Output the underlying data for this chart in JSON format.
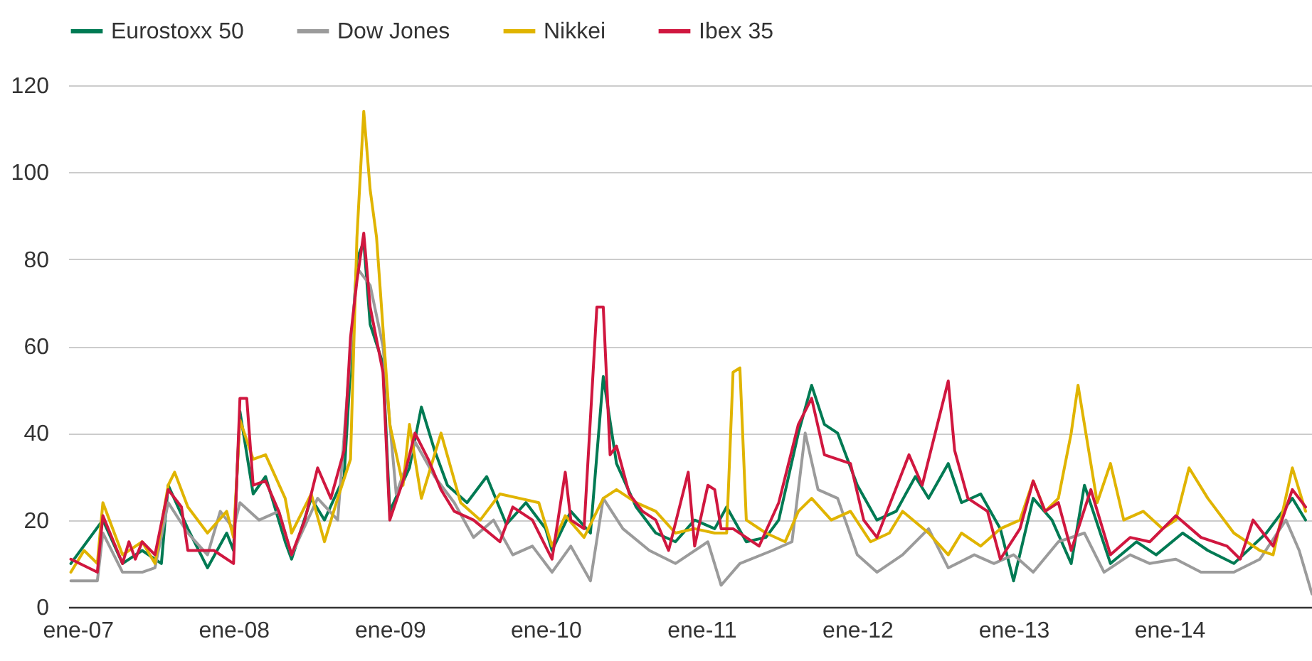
{
  "chart_data": {
    "type": "line",
    "legend": "top",
    "grid": "y",
    "line_style": "solid",
    "xlim": [
      "2006-12-10",
      "2014-12-01"
    ],
    "xticks": [
      {
        "value": "2007-01-01",
        "label": "ene-07"
      },
      {
        "value": "2008-01-01",
        "label": "ene-08"
      },
      {
        "value": "2009-01-01",
        "label": "ene-09"
      },
      {
        "value": "2010-01-01",
        "label": "ene-10"
      },
      {
        "value": "2011-01-01",
        "label": "ene-11"
      },
      {
        "value": "2012-01-01",
        "label": "ene-12"
      },
      {
        "value": "2013-01-01",
        "label": "ene-13"
      },
      {
        "value": "2014-01-01",
        "label": "ene-14"
      }
    ],
    "ylim": [
      0,
      120
    ],
    "yticks": [
      0,
      20,
      40,
      60,
      80,
      100,
      120
    ],
    "series": [
      {
        "name": "Eurostoxx 50",
        "color": "#007a53",
        "x": [
          "2006-12-16",
          "2007-03-01",
          "2007-04-16",
          "2007-06-01",
          "2007-07-16",
          "2007-08-01",
          "2007-09-16",
          "2007-11-01",
          "2007-12-16",
          "2008-01-01",
          "2008-01-16",
          "2008-02-16",
          "2008-03-16",
          "2008-05-01",
          "2008-05-16",
          "2008-07-01",
          "2008-08-01",
          "2008-09-16",
          "2008-10-16",
          "2008-11-01",
          "2008-11-16",
          "2008-12-16",
          "2009-01-01",
          "2009-02-16",
          "2009-03-16",
          "2009-04-16",
          "2009-05-16",
          "2009-07-01",
          "2009-08-16",
          "2009-10-01",
          "2009-11-16",
          "2010-01-01",
          "2010-01-16",
          "2010-03-01",
          "2010-04-16",
          "2010-05-16",
          "2010-06-16",
          "2010-08-01",
          "2010-09-16",
          "2010-11-01",
          "2010-12-16",
          "2011-02-01",
          "2011-03-01",
          "2011-04-16",
          "2011-06-01",
          "2011-07-01",
          "2011-08-16",
          "2011-09-16",
          "2011-10-16",
          "2011-11-16",
          "2012-01-01",
          "2012-02-16",
          "2012-04-01",
          "2012-05-16",
          "2012-06-16",
          "2012-08-01",
          "2012-09-01",
          "2012-10-16",
          "2012-12-01",
          "2013-01-01",
          "2013-02-16",
          "2013-04-01",
          "2013-05-16",
          "2013-06-16",
          "2013-08-16",
          "2013-10-16",
          "2013-12-01",
          "2014-02-01",
          "2014-04-01",
          "2014-06-01",
          "2014-08-16",
          "2014-10-16",
          "2014-11-16"
        ],
        "values": [
          10,
          20,
          10,
          13,
          10,
          28,
          18,
          9,
          17,
          13,
          45,
          26,
          30,
          15,
          11,
          25,
          20,
          30,
          80,
          84,
          65,
          56,
          22,
          32,
          46,
          36,
          28,
          24,
          30,
          19,
          24,
          18,
          13,
          22,
          17,
          53,
          33,
          23,
          17,
          15,
          20,
          18,
          23,
          15,
          16,
          20,
          40,
          51,
          42,
          40,
          28,
          20,
          22,
          30,
          25,
          33,
          24,
          26,
          18,
          6,
          25,
          20,
          10,
          28,
          10,
          15,
          12,
          17,
          13,
          10,
          17,
          25,
          20
        ]
      },
      {
        "name": "Dow Jones",
        "color": "#9b9b9b",
        "x": [
          "2006-12-16",
          "2007-02-16",
          "2007-03-01",
          "2007-04-16",
          "2007-06-01",
          "2007-07-01",
          "2007-08-01",
          "2007-09-16",
          "2007-11-01",
          "2007-12-01",
          "2008-01-01",
          "2008-01-16",
          "2008-03-01",
          "2008-04-16",
          "2008-05-16",
          "2008-07-16",
          "2008-09-01",
          "2008-10-16",
          "2008-11-16",
          "2008-12-16",
          "2009-01-16",
          "2009-03-01",
          "2009-04-16",
          "2009-06-01",
          "2009-07-16",
          "2009-09-01",
          "2009-10-16",
          "2009-12-01",
          "2010-01-16",
          "2010-03-01",
          "2010-04-16",
          "2010-05-16",
          "2010-07-01",
          "2010-09-01",
          "2010-11-01",
          "2011-01-16",
          "2011-02-16",
          "2011-04-01",
          "2011-06-16",
          "2011-08-01",
          "2011-09-01",
          "2011-10-01",
          "2011-11-16",
          "2012-01-01",
          "2012-02-16",
          "2012-04-16",
          "2012-06-16",
          "2012-08-01",
          "2012-10-01",
          "2012-11-16",
          "2013-01-01",
          "2013-02-16",
          "2013-04-16",
          "2013-06-16",
          "2013-08-01",
          "2013-10-01",
          "2013-11-16",
          "2014-01-16",
          "2014-03-16",
          "2014-06-01",
          "2014-08-01",
          "2014-10-01",
          "2014-11-01",
          "2014-12-01"
        ],
        "values": [
          6,
          6,
          17,
          8,
          8,
          9,
          24,
          17,
          12,
          22,
          18,
          24,
          20,
          22,
          12,
          25,
          20,
          78,
          74,
          60,
          26,
          38,
          30,
          24,
          16,
          20,
          12,
          14,
          8,
          14,
          6,
          25,
          18,
          13,
          10,
          15,
          5,
          10,
          13,
          15,
          40,
          27,
          25,
          12,
          8,
          12,
          18,
          9,
          12,
          10,
          12,
          8,
          15,
          17,
          8,
          12,
          10,
          11,
          8,
          8,
          11,
          20,
          13,
          3
        ]
      },
      {
        "name": "Nikkei",
        "color": "#e0b400",
        "x": [
          "2006-12-16",
          "2007-01-16",
          "2007-02-16",
          "2007-03-01",
          "2007-04-16",
          "2007-06-01",
          "2007-07-01",
          "2007-08-01",
          "2007-08-16",
          "2007-09-16",
          "2007-11-01",
          "2007-12-16",
          "2008-01-01",
          "2008-01-16",
          "2008-02-16",
          "2008-03-16",
          "2008-05-01",
          "2008-05-16",
          "2008-07-01",
          "2008-08-01",
          "2008-09-01",
          "2008-10-01",
          "2008-10-16",
          "2008-11-01",
          "2008-11-16",
          "2008-12-01",
          "2009-01-01",
          "2009-02-01",
          "2009-02-16",
          "2009-03-16",
          "2009-05-01",
          "2009-06-16",
          "2009-08-01",
          "2009-09-16",
          "2009-11-01",
          "2009-12-16",
          "2010-01-16",
          "2010-02-16",
          "2010-04-01",
          "2010-05-16",
          "2010-06-16",
          "2010-08-01",
          "2010-09-16",
          "2010-11-01",
          "2010-12-16",
          "2011-02-01",
          "2011-03-01",
          "2011-03-16",
          "2011-04-01",
          "2011-04-16",
          "2011-06-01",
          "2011-07-16",
          "2011-08-16",
          "2011-09-16",
          "2011-11-01",
          "2011-12-16",
          "2012-02-01",
          "2012-03-16",
          "2012-04-16",
          "2012-06-16",
          "2012-08-01",
          "2012-09-01",
          "2012-10-16",
          "2012-12-01",
          "2013-01-16",
          "2013-02-16",
          "2013-03-16",
          "2013-04-16",
          "2013-05-16",
          "2013-06-01",
          "2013-06-16",
          "2013-07-16",
          "2013-08-16",
          "2013-09-16",
          "2013-11-01",
          "2013-12-16",
          "2014-01-16",
          "2014-02-16",
          "2014-04-01",
          "2014-06-01",
          "2014-08-01",
          "2014-09-01",
          "2014-10-16",
          "2014-11-16"
        ],
        "values": [
          8,
          13,
          10,
          24,
          12,
          15,
          10,
          28,
          31,
          23,
          17,
          22,
          16,
          43,
          34,
          35,
          25,
          17,
          26,
          15,
          25,
          34,
          85,
          114,
          96,
          85,
          42,
          28,
          42,
          25,
          40,
          24,
          20,
          26,
          25,
          24,
          14,
          21,
          16,
          25,
          27,
          24,
          22,
          17,
          18,
          17,
          17,
          54,
          55,
          20,
          17,
          15,
          22,
          25,
          20,
          22,
          15,
          17,
          22,
          17,
          12,
          17,
          14,
          18,
          20,
          29,
          22,
          25,
          40,
          51,
          42,
          24,
          33,
          20,
          22,
          18,
          20,
          32,
          25,
          17,
          13,
          12,
          32,
          22
        ]
      },
      {
        "name": "Ibex 35",
        "color": "#d0173f",
        "x": [
          "2006-12-16",
          "2007-02-16",
          "2007-03-01",
          "2007-04-16",
          "2007-05-01",
          "2007-05-16",
          "2007-06-01",
          "2007-07-01",
          "2007-08-01",
          "2007-09-01",
          "2007-09-16",
          "2007-11-16",
          "2008-01-01",
          "2008-01-16",
          "2008-02-01",
          "2008-02-16",
          "2008-03-16",
          "2008-04-16",
          "2008-05-16",
          "2008-06-16",
          "2008-07-16",
          "2008-08-16",
          "2008-09-16",
          "2008-10-01",
          "2008-10-16",
          "2008-11-01",
          "2008-11-16",
          "2008-12-16",
          "2009-01-01",
          "2009-02-01",
          "2009-03-01",
          "2009-04-01",
          "2009-05-01",
          "2009-06-01",
          "2009-07-16",
          "2009-09-16",
          "2009-10-16",
          "2009-12-01",
          "2010-01-16",
          "2010-02-16",
          "2010-03-01",
          "2010-04-01",
          "2010-05-01",
          "2010-05-16",
          "2010-06-01",
          "2010-06-16",
          "2010-07-16",
          "2010-08-16",
          "2010-09-16",
          "2010-10-16",
          "2010-12-01",
          "2010-12-16",
          "2011-01-16",
          "2011-02-01",
          "2011-02-16",
          "2011-03-16",
          "2011-05-16",
          "2011-07-01",
          "2011-08-16",
          "2011-09-16",
          "2011-10-16",
          "2011-11-16",
          "2011-12-16",
          "2012-01-16",
          "2012-02-16",
          "2012-05-01",
          "2012-06-01",
          "2012-08-01",
          "2012-08-16",
          "2012-09-16",
          "2012-11-01",
          "2012-12-01",
          "2013-01-16",
          "2013-02-16",
          "2013-03-16",
          "2013-04-16",
          "2013-05-16",
          "2013-07-01",
          "2013-08-16",
          "2013-10-01",
          "2013-11-16",
          "2014-01-16",
          "2014-03-16",
          "2014-05-16",
          "2014-06-16",
          "2014-07-16",
          "2014-09-01",
          "2014-10-16",
          "2014-11-16"
        ],
        "values": [
          11,
          8,
          21,
          10,
          15,
          11,
          15,
          12,
          27,
          23,
          13,
          13,
          10,
          48,
          48,
          28,
          29,
          22,
          12,
          20,
          32,
          25,
          36,
          62,
          75,
          86,
          69,
          54,
          20,
          29,
          40,
          34,
          27,
          22,
          20,
          15,
          23,
          20,
          11,
          31,
          20,
          18,
          69,
          69,
          35,
          37,
          26,
          22,
          20,
          13,
          31,
          14,
          28,
          27,
          18,
          18,
          14,
          24,
          42,
          48,
          35,
          34,
          33,
          20,
          16,
          35,
          28,
          52,
          36,
          25,
          22,
          11,
          18,
          29,
          22,
          24,
          13,
          27,
          12,
          16,
          15,
          21,
          16,
          14,
          11,
          20,
          14,
          27,
          23
        ]
      }
    ]
  }
}
